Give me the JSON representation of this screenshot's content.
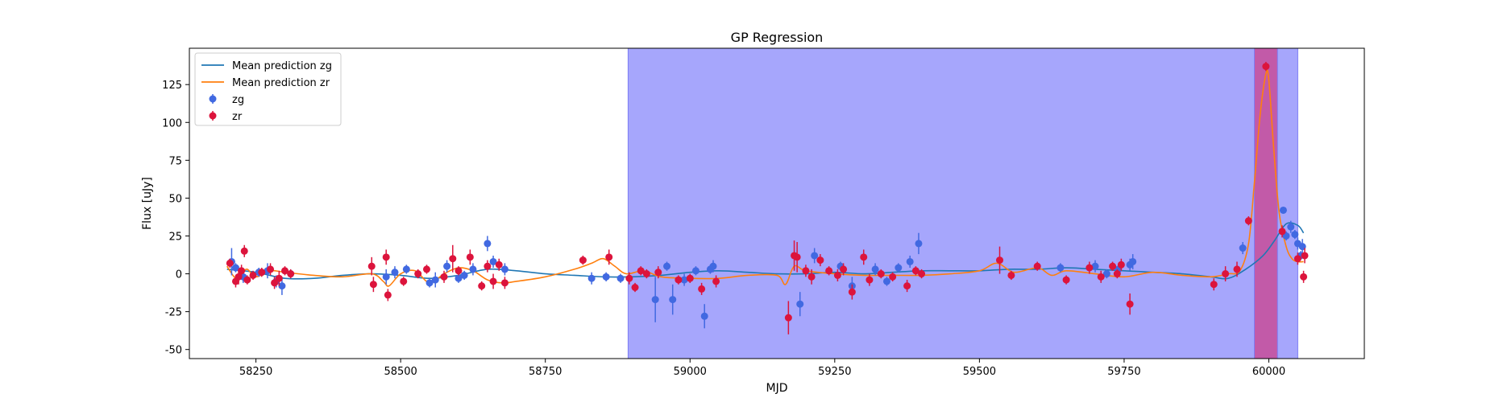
{
  "chart_data": {
    "type": "scatter",
    "title": "GP Regression",
    "xlabel": "MJD",
    "ylabel": "Flux [uJy]",
    "xlim": [
      58135,
      60165
    ],
    "ylim": [
      -56,
      149
    ],
    "x_ticks": [
      58250,
      58500,
      58750,
      59000,
      59250,
      59500,
      59750,
      60000
    ],
    "y_ticks": [
      -50,
      -25,
      0,
      25,
      50,
      75,
      100,
      125
    ],
    "grid": false,
    "legend_position": "top-left",
    "shaded_regions": [
      {
        "x": [
          58893,
          60050
        ],
        "color": "#a6a6fc"
      },
      {
        "x": [
          59975,
          60015
        ],
        "color": "#c25aa8"
      }
    ],
    "series": [
      {
        "name": "Mean prediction zg",
        "kind": "line",
        "color": "#1f77b4",
        "x": [
          58200,
          58250,
          58300,
          58350,
          58400,
          58450,
          58500,
          58550,
          58600,
          58650,
          58700,
          58750,
          58800,
          58850,
          58900,
          58950,
          59000,
          59050,
          59100,
          59150,
          59200,
          59250,
          59300,
          59350,
          59400,
          59450,
          59500,
          59550,
          59600,
          59650,
          59700,
          59750,
          59800,
          59850,
          59900,
          59930,
          59960,
          59990,
          60010,
          60030,
          60050,
          60060
        ],
        "y": [
          3,
          1,
          -3,
          -3,
          -1,
          0,
          -1,
          -3,
          -1,
          3,
          2,
          0,
          -1,
          -2,
          -2,
          -1,
          1,
          2,
          1,
          0,
          0,
          1,
          0,
          1,
          2,
          2,
          2,
          3,
          3,
          4,
          3,
          2,
          1,
          0,
          -2,
          -3,
          3,
          12,
          22,
          33,
          32,
          27
        ]
      },
      {
        "name": "Mean prediction zr",
        "kind": "line",
        "color": "#ff7f0e",
        "x": [
          58200,
          58215,
          58225,
          58235,
          58250,
          58275,
          58300,
          58350,
          58400,
          58450,
          58470,
          58480,
          58500,
          58525,
          58550,
          58575,
          58600,
          58625,
          58650,
          58675,
          58700,
          58750,
          58800,
          58830,
          58850,
          58870,
          58890,
          58920,
          58950,
          59000,
          59050,
          59100,
          59150,
          59165,
          59180,
          59200,
          59250,
          59300,
          59350,
          59400,
          59450,
          59500,
          59530,
          59560,
          59600,
          59625,
          59650,
          59700,
          59750,
          59800,
          59850,
          59900,
          59930,
          59950,
          59965,
          59975,
          59985,
          59995,
          60000,
          60008,
          60018,
          60030,
          60040,
          60050,
          60060
        ],
        "y": [
          5,
          -3,
          0,
          3,
          -2,
          2,
          1,
          -1,
          -2,
          0,
          -5,
          -8,
          0,
          2,
          -6,
          0,
          4,
          2,
          -4,
          -6,
          -5,
          -2,
          3,
          7,
          10,
          5,
          0,
          2,
          -2,
          -3,
          -3,
          -1,
          -1,
          -7,
          5,
          2,
          0,
          -1,
          -1,
          -1,
          0,
          2,
          7,
          1,
          4,
          -1,
          2,
          0,
          -2,
          1,
          -1,
          -2,
          0,
          2,
          20,
          60,
          105,
          132,
          128,
          85,
          40,
          18,
          10,
          8,
          8
        ]
      },
      {
        "name": "zg",
        "kind": "scatter",
        "color": "#4169e1",
        "x": [
          58208,
          58215,
          58228,
          58255,
          58270,
          58285,
          58295,
          58310,
          58475,
          58490,
          58510,
          58550,
          58560,
          58580,
          58600,
          58610,
          58625,
          58650,
          58660,
          58680,
          58830,
          58855,
          58880,
          58940,
          58960,
          58970,
          58990,
          59000,
          59010,
          59025,
          59035,
          59040,
          59190,
          59215,
          59260,
          59280,
          59320,
          59340,
          59360,
          59380,
          59395,
          59640,
          59700,
          59720,
          59740,
          59760,
          59765,
          59955,
          60025,
          60030,
          60038,
          60045,
          60050,
          60055,
          60058
        ],
        "y": [
          8,
          4,
          -2,
          1,
          2,
          -5,
          -8,
          0,
          -2,
          1,
          3,
          -6,
          -4,
          5,
          -3,
          -1,
          3,
          20,
          8,
          3,
          -3,
          -2,
          -3,
          -17,
          5,
          -17,
          -4,
          -3,
          2,
          -28,
          3,
          5,
          -20,
          12,
          5,
          -8,
          3,
          -5,
          4,
          8,
          20,
          4,
          5,
          0,
          3,
          6,
          8,
          17,
          42,
          25,
          31,
          26,
          20,
          12,
          18
        ],
        "err": [
          9,
          3,
          4,
          3,
          5,
          4,
          6,
          3,
          5,
          4,
          3,
          3,
          5,
          4,
          3,
          3,
          4,
          5,
          4,
          4,
          4,
          3,
          3,
          15,
          3,
          10,
          4,
          3,
          3,
          8,
          3,
          4,
          8,
          5,
          3,
          6,
          4,
          3,
          3,
          4,
          7,
          3,
          4,
          3,
          3,
          4,
          5,
          4,
          2,
          3,
          4,
          3,
          4,
          3,
          5
        ]
      },
      {
        "name": "zr",
        "kind": "scatter",
        "color": "#dc143c",
        "x": [
          58205,
          58215,
          58220,
          58225,
          58230,
          58235,
          58245,
          58260,
          58275,
          58282,
          58290,
          58300,
          58310,
          58450,
          58453,
          58475,
          58478,
          58505,
          58530,
          58545,
          58575,
          58590,
          58600,
          58620,
          58640,
          58650,
          58660,
          58670,
          58680,
          58815,
          58860,
          58895,
          58905,
          58915,
          58925,
          58945,
          58980,
          59000,
          59020,
          59045,
          59170,
          59180,
          59185,
          59200,
          59210,
          59225,
          59240,
          59255,
          59265,
          59280,
          59300,
          59310,
          59330,
          59350,
          59375,
          59390,
          59400,
          59535,
          59555,
          59600,
          59650,
          59690,
          59710,
          59730,
          59738,
          59745,
          59760,
          59905,
          59925,
          59945,
          59965,
          59995,
          60023,
          60050,
          60060,
          60062
        ],
        "y": [
          7,
          -5,
          -2,
          2,
          15,
          -4,
          -1,
          1,
          3,
          -6,
          -3,
          2,
          0,
          5,
          -7,
          11,
          -14,
          -5,
          0,
          3,
          -2,
          10,
          2,
          11,
          -8,
          5,
          -5,
          6,
          -6,
          9,
          11,
          -3,
          -9,
          2,
          0,
          1,
          -4,
          -3,
          -10,
          -5,
          -29,
          12,
          11,
          2,
          -2,
          9,
          2,
          -1,
          3,
          -12,
          11,
          -4,
          0,
          -2,
          -8,
          2,
          0,
          9,
          -1,
          5,
          -4,
          4,
          -2,
          5,
          0,
          6,
          -20,
          -7,
          0,
          3,
          35,
          137,
          28,
          10,
          -2,
          12
        ],
        "err": [
          3,
          4,
          5,
          4,
          4,
          3,
          3,
          3,
          4,
          4,
          5,
          3,
          3,
          6,
          5,
          5,
          4,
          3,
          3,
          3,
          4,
          9,
          3,
          5,
          3,
          4,
          5,
          4,
          4,
          3,
          5,
          4,
          3,
          3,
          3,
          4,
          3,
          3,
          4,
          4,
          11,
          10,
          10,
          4,
          5,
          4,
          3,
          4,
          4,
          5,
          5,
          4,
          3,
          3,
          4,
          3,
          3,
          9,
          3,
          3,
          3,
          4,
          4,
          3,
          3,
          4,
          7,
          4,
          5,
          5,
          3,
          3,
          4,
          4,
          4,
          5
        ]
      }
    ]
  }
}
